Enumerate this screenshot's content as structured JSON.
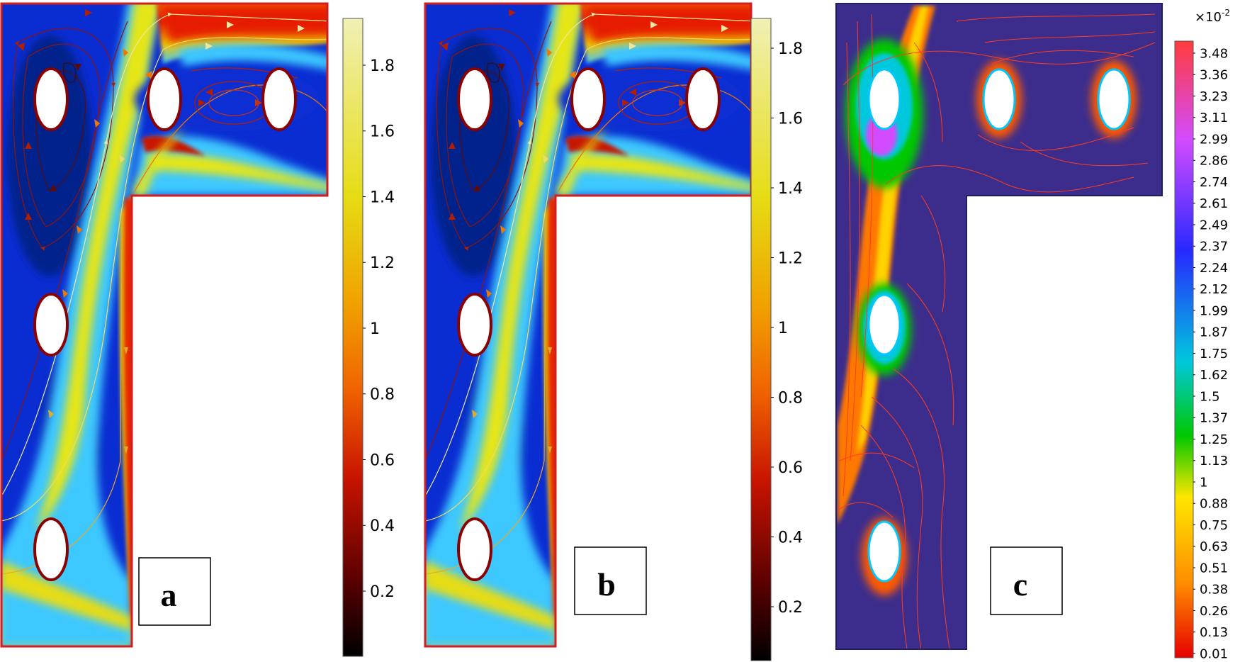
{
  "panels": [
    {
      "id": "a",
      "label": "a",
      "colorbar": {
        "colormap": "heat",
        "ticks": [
          "0.2",
          "0.4",
          "0.6",
          "0.8",
          "1",
          "1.2",
          "1.4",
          "1.6",
          "1.8"
        ]
      }
    },
    {
      "id": "b",
      "label": "b",
      "colorbar": {
        "colormap": "heat",
        "ticks": [
          "0.2",
          "0.4",
          "0.6",
          "0.8",
          "1",
          "1.2",
          "1.4",
          "1.6",
          "1.8"
        ]
      }
    },
    {
      "id": "c",
      "label": "c",
      "colorbar": {
        "colormap": "rainbow",
        "multiplier": "×10",
        "exponent": "-2",
        "ticks": [
          "3.48",
          "3.36",
          "3.23",
          "3.11",
          "2.99",
          "2.86",
          "2.74",
          "2.61",
          "2.49",
          "2.37",
          "2.24",
          "2.12",
          "1.99",
          "1.87",
          "1.75",
          "1.62",
          "1.5",
          "1.37",
          "1.25",
          "1.13",
          "1",
          "0.88",
          "0.75",
          "0.63",
          "0.51",
          "0.38",
          "0.26",
          "0.13",
          "0.01"
        ]
      }
    }
  ],
  "colors": {
    "heat": [
      "#000000",
      "#5a0000",
      "#c81400",
      "#f06400",
      "#f0a000",
      "#e6dc14",
      "#f0f0b4"
    ],
    "rainbow": [
      "#e60000",
      "#ff8c00",
      "#ffe600",
      "#00c800",
      "#00c8dc",
      "#2828ff",
      "#d24bff",
      "#ff3c3c"
    ],
    "field_low": "#0a2dd2",
    "field_c": "#3c2d8c",
    "wall": "#d21e1e"
  }
}
